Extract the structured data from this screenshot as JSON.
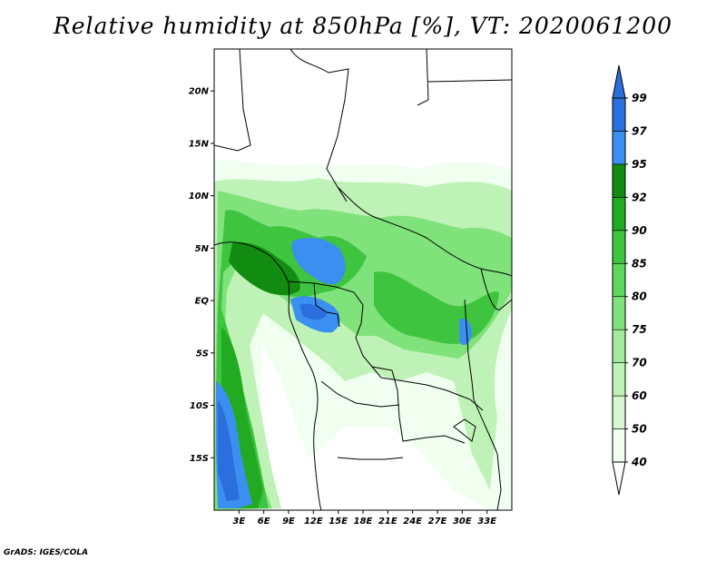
{
  "title": "Relative humidity at 850hPa [%], VT: 2020061200",
  "credit": "GrADS: IGES/COLA",
  "map": {
    "lon_range": [
      0,
      36
    ],
    "lat_range": [
      -20,
      24
    ],
    "lat_ticks": [
      {
        "value": 20,
        "label": "20N"
      },
      {
        "value": 15,
        "label": "15N"
      },
      {
        "value": 10,
        "label": "10N"
      },
      {
        "value": 5,
        "label": "5N"
      },
      {
        "value": 0,
        "label": "EQ"
      },
      {
        "value": -5,
        "label": "5S"
      },
      {
        "value": -10,
        "label": "10S"
      },
      {
        "value": -15,
        "label": "15S"
      }
    ],
    "lon_ticks": [
      {
        "value": 3,
        "label": "3E"
      },
      {
        "value": 6,
        "label": "6E"
      },
      {
        "value": 9,
        "label": "9E"
      },
      {
        "value": 12,
        "label": "12E"
      },
      {
        "value": 15,
        "label": "15E"
      },
      {
        "value": 18,
        "label": "18E"
      },
      {
        "value": 21,
        "label": "21E"
      },
      {
        "value": 24,
        "label": "24E"
      },
      {
        "value": 27,
        "label": "27E"
      },
      {
        "value": 30,
        "label": "30E"
      },
      {
        "value": 33,
        "label": "33E"
      }
    ]
  },
  "colorbar": {
    "levels": [
      {
        "label": "40",
        "color": "#f0fff0"
      },
      {
        "label": "50",
        "color": "#d6f7d0"
      },
      {
        "label": "60",
        "color": "#bff2b6"
      },
      {
        "label": "70",
        "color": "#a2eb9c"
      },
      {
        "label": "75",
        "color": "#7fe27a"
      },
      {
        "label": "80",
        "color": "#5ed75a"
      },
      {
        "label": "85",
        "color": "#3fc43f"
      },
      {
        "label": "90",
        "color": "#22ab22"
      },
      {
        "label": "92",
        "color": "#118c11"
      },
      {
        "label": "95",
        "color": "#3b8ff0"
      },
      {
        "label": "97",
        "color": "#2a6fdd"
      },
      {
        "label": "99",
        "color": ""
      }
    ],
    "below_color": "#ffffff",
    "above_color": "#2a6fdd"
  }
}
